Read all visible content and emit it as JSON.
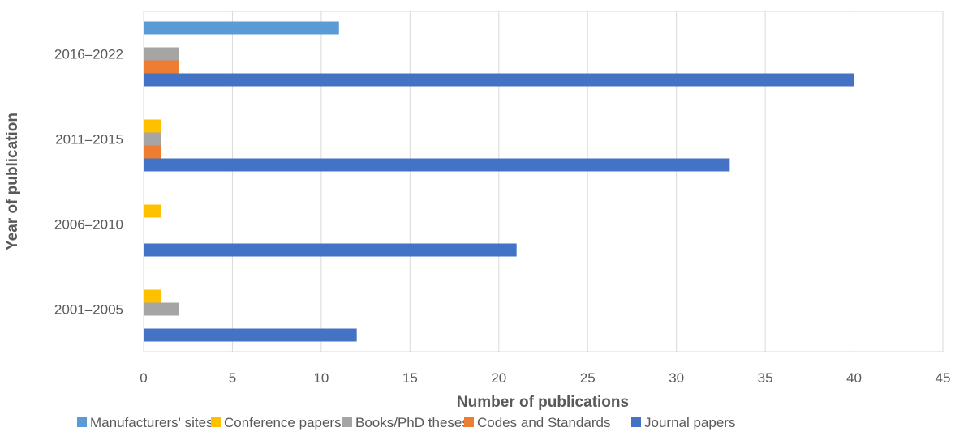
{
  "chart_data": {
    "type": "bar",
    "orientation": "horizontal",
    "categories": [
      "2001–2005",
      "2006–2010",
      "2011–2015",
      "2016–2022"
    ],
    "series": [
      {
        "name": "Manufacturers' sites",
        "color": "#5B9BD5",
        "values": [
          0,
          0,
          0,
          11
        ]
      },
      {
        "name": "Conference papers",
        "color": "#FFC000",
        "values": [
          1,
          1,
          1,
          0
        ]
      },
      {
        "name": "Books/PhD theses",
        "color": "#A5A5A5",
        "values": [
          2,
          0,
          1,
          2
        ]
      },
      {
        "name": "Codes and Standards",
        "color": "#ED7D31",
        "values": [
          0,
          0,
          1,
          2
        ]
      },
      {
        "name": "Journal papers",
        "color": "#4472C4",
        "values": [
          12,
          21,
          33,
          40
        ]
      }
    ],
    "xlabel": "Number of publications",
    "ylabel": "Year of publication",
    "xlim": [
      0,
      45
    ],
    "xticks": [
      "0",
      "5",
      "10",
      "15",
      "20",
      "25",
      "30",
      "35",
      "40",
      "45"
    ],
    "grid": true,
    "legend": "bottom"
  }
}
